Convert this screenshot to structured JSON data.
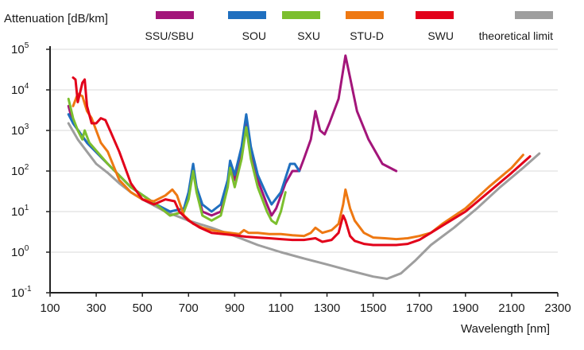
{
  "chart_data": {
    "type": "line",
    "ylabel": "Attenuation [dB/km]",
    "xlabel": "Wavelength [nm]",
    "xlim": [
      100,
      2300
    ],
    "ylim_log10": [
      -1,
      5
    ],
    "y_scale": "log",
    "x_ticks": [
      "100",
      "300",
      "500",
      "700",
      "900",
      "1100",
      "1300",
      "1500",
      "1700",
      "1900",
      "2100",
      "2300"
    ],
    "x_tick_values": [
      100,
      300,
      500,
      700,
      900,
      1100,
      1300,
      1500,
      1700,
      1900,
      2100,
      2300
    ],
    "y_ticks": [
      {
        "base": "10",
        "exp": "5",
        "value": 100000
      },
      {
        "base": "10",
        "exp": "4",
        "value": 10000
      },
      {
        "base": "10",
        "exp": "3",
        "value": 1000
      },
      {
        "base": "10",
        "exp": "2",
        "value": 100
      },
      {
        "base": "10",
        "exp": "1",
        "value": 10
      },
      {
        "base": "10",
        "exp": "0",
        "value": 1
      },
      {
        "base": "10",
        "exp": "-1",
        "value": 0.1
      }
    ],
    "grid": "horizontal",
    "legend_position": "top",
    "series": [
      {
        "name": "SSU/SBU",
        "color": "#a3157a",
        "points": [
          [
            180,
            4000
          ],
          [
            200,
            1500
          ],
          [
            260,
            500
          ],
          [
            350,
            150
          ],
          [
            450,
            40
          ],
          [
            560,
            15
          ],
          [
            620,
            8
          ],
          [
            680,
            10
          ],
          [
            700,
            25
          ],
          [
            720,
            100
          ],
          [
            735,
            40
          ],
          [
            760,
            10
          ],
          [
            800,
            8
          ],
          [
            840,
            10
          ],
          [
            870,
            50
          ],
          [
            880,
            150
          ],
          [
            900,
            60
          ],
          [
            930,
            300
          ],
          [
            950,
            1500
          ],
          [
            970,
            300
          ],
          [
            1000,
            60
          ],
          [
            1040,
            15
          ],
          [
            1060,
            8
          ],
          [
            1080,
            12
          ],
          [
            1120,
            50
          ],
          [
            1150,
            100
          ],
          [
            1180,
            100
          ],
          [
            1200,
            200
          ],
          [
            1230,
            600
          ],
          [
            1250,
            3000
          ],
          [
            1270,
            1000
          ],
          [
            1290,
            800
          ],
          [
            1310,
            1500
          ],
          [
            1350,
            6000
          ],
          [
            1380,
            70000
          ],
          [
            1400,
            20000
          ],
          [
            1430,
            3000
          ],
          [
            1480,
            600
          ],
          [
            1540,
            150
          ],
          [
            1600,
            100
          ]
        ]
      },
      {
        "name": "SOU",
        "color": "#1f6fbf",
        "points": [
          [
            180,
            2500
          ],
          [
            200,
            1500
          ],
          [
            260,
            500
          ],
          [
            350,
            150
          ],
          [
            450,
            40
          ],
          [
            560,
            15
          ],
          [
            620,
            10
          ],
          [
            680,
            12
          ],
          [
            700,
            30
          ],
          [
            720,
            150
          ],
          [
            735,
            40
          ],
          [
            760,
            15
          ],
          [
            800,
            10
          ],
          [
            840,
            15
          ],
          [
            870,
            60
          ],
          [
            880,
            180
          ],
          [
            900,
            80
          ],
          [
            930,
            400
          ],
          [
            950,
            2500
          ],
          [
            970,
            400
          ],
          [
            1000,
            80
          ],
          [
            1040,
            25
          ],
          [
            1060,
            15
          ],
          [
            1100,
            30
          ],
          [
            1140,
            150
          ],
          [
            1160,
            150
          ],
          [
            1180,
            100
          ]
        ]
      },
      {
        "name": "SXU",
        "color": "#7cbf2e",
        "points": [
          [
            180,
            6000
          ],
          [
            200,
            2000
          ],
          [
            220,
            1000
          ],
          [
            240,
            600
          ],
          [
            250,
            1000
          ],
          [
            270,
            500
          ],
          [
            350,
            150
          ],
          [
            450,
            40
          ],
          [
            560,
            15
          ],
          [
            620,
            8
          ],
          [
            680,
            10
          ],
          [
            700,
            20
          ],
          [
            720,
            100
          ],
          [
            735,
            30
          ],
          [
            760,
            8
          ],
          [
            800,
            6
          ],
          [
            840,
            8
          ],
          [
            870,
            40
          ],
          [
            880,
            120
          ],
          [
            900,
            40
          ],
          [
            930,
            200
          ],
          [
            950,
            1200
          ],
          [
            970,
            200
          ],
          [
            1000,
            40
          ],
          [
            1040,
            10
          ],
          [
            1060,
            6
          ],
          [
            1080,
            5
          ],
          [
            1100,
            10
          ],
          [
            1120,
            30
          ]
        ]
      },
      {
        "name": "STU-D",
        "color": "#ee7812",
        "points": [
          [
            200,
            4000
          ],
          [
            220,
            8000
          ],
          [
            240,
            7000
          ],
          [
            260,
            3000
          ],
          [
            280,
            2000
          ],
          [
            300,
            1000
          ],
          [
            320,
            500
          ],
          [
            350,
            300
          ],
          [
            400,
            60
          ],
          [
            450,
            30
          ],
          [
            500,
            20
          ],
          [
            550,
            18
          ],
          [
            600,
            25
          ],
          [
            630,
            35
          ],
          [
            650,
            25
          ],
          [
            680,
            8
          ],
          [
            720,
            5
          ],
          [
            760,
            4
          ],
          [
            800,
            3.5
          ],
          [
            840,
            3.2
          ],
          [
            880,
            3
          ],
          [
            920,
            2.8
          ],
          [
            940,
            3.5
          ],
          [
            960,
            3
          ],
          [
            1000,
            3
          ],
          [
            1050,
            2.8
          ],
          [
            1100,
            2.8
          ],
          [
            1150,
            2.6
          ],
          [
            1200,
            2.5
          ],
          [
            1230,
            3
          ],
          [
            1250,
            4
          ],
          [
            1280,
            3
          ],
          [
            1320,
            3.5
          ],
          [
            1350,
            5
          ],
          [
            1370,
            15
          ],
          [
            1380,
            35
          ],
          [
            1400,
            12
          ],
          [
            1420,
            6
          ],
          [
            1460,
            3
          ],
          [
            1500,
            2.3
          ],
          [
            1550,
            2.2
          ],
          [
            1600,
            2.1
          ],
          [
            1650,
            2.2
          ],
          [
            1700,
            2.5
          ],
          [
            1750,
            3
          ],
          [
            1800,
            5
          ],
          [
            1900,
            12
          ],
          [
            2000,
            40
          ],
          [
            2100,
            120
          ],
          [
            2150,
            250
          ]
        ]
      },
      {
        "name": "SWU",
        "color": "#e2001a",
        "points": [
          [
            200,
            20000
          ],
          [
            210,
            18000
          ],
          [
            220,
            5000
          ],
          [
            240,
            15000
          ],
          [
            250,
            18000
          ],
          [
            260,
            4000
          ],
          [
            280,
            1500
          ],
          [
            300,
            1500
          ],
          [
            320,
            2000
          ],
          [
            340,
            1800
          ],
          [
            360,
            1000
          ],
          [
            400,
            300
          ],
          [
            450,
            50
          ],
          [
            500,
            20
          ],
          [
            550,
            15
          ],
          [
            600,
            20
          ],
          [
            640,
            18
          ],
          [
            660,
            10
          ],
          [
            700,
            6
          ],
          [
            750,
            4
          ],
          [
            800,
            3
          ],
          [
            850,
            2.8
          ],
          [
            900,
            2.6
          ],
          [
            950,
            2.4
          ],
          [
            1000,
            2.3
          ],
          [
            1050,
            2.2
          ],
          [
            1100,
            2.1
          ],
          [
            1150,
            2
          ],
          [
            1200,
            2
          ],
          [
            1250,
            2.2
          ],
          [
            1280,
            1.8
          ],
          [
            1320,
            2
          ],
          [
            1350,
            3
          ],
          [
            1370,
            8
          ],
          [
            1380,
            6
          ],
          [
            1400,
            2.5
          ],
          [
            1420,
            1.9
          ],
          [
            1460,
            1.6
          ],
          [
            1500,
            1.5
          ],
          [
            1550,
            1.5
          ],
          [
            1600,
            1.5
          ],
          [
            1650,
            1.6
          ],
          [
            1700,
            2
          ],
          [
            1750,
            3
          ],
          [
            1800,
            4.5
          ],
          [
            1900,
            10
          ],
          [
            2000,
            30
          ],
          [
            2100,
            90
          ],
          [
            2180,
            230
          ]
        ]
      },
      {
        "name": "theoretical limit",
        "color": "#9e9e9e",
        "points": [
          [
            180,
            1500
          ],
          [
            220,
            600
          ],
          [
            260,
            300
          ],
          [
            300,
            150
          ],
          [
            350,
            90
          ],
          [
            400,
            50
          ],
          [
            450,
            30
          ],
          [
            500,
            20
          ],
          [
            600,
            10
          ],
          [
            700,
            6
          ],
          [
            800,
            4
          ],
          [
            900,
            2.5
          ],
          [
            1000,
            1.5
          ],
          [
            1100,
            1
          ],
          [
            1200,
            0.7
          ],
          [
            1300,
            0.5
          ],
          [
            1400,
            0.35
          ],
          [
            1500,
            0.25
          ],
          [
            1560,
            0.22
          ],
          [
            1620,
            0.3
          ],
          [
            1680,
            0.6
          ],
          [
            1750,
            1.5
          ],
          [
            1850,
            4
          ],
          [
            1950,
            12
          ],
          [
            2050,
            40
          ],
          [
            2150,
            120
          ],
          [
            2220,
            270
          ]
        ]
      }
    ]
  }
}
